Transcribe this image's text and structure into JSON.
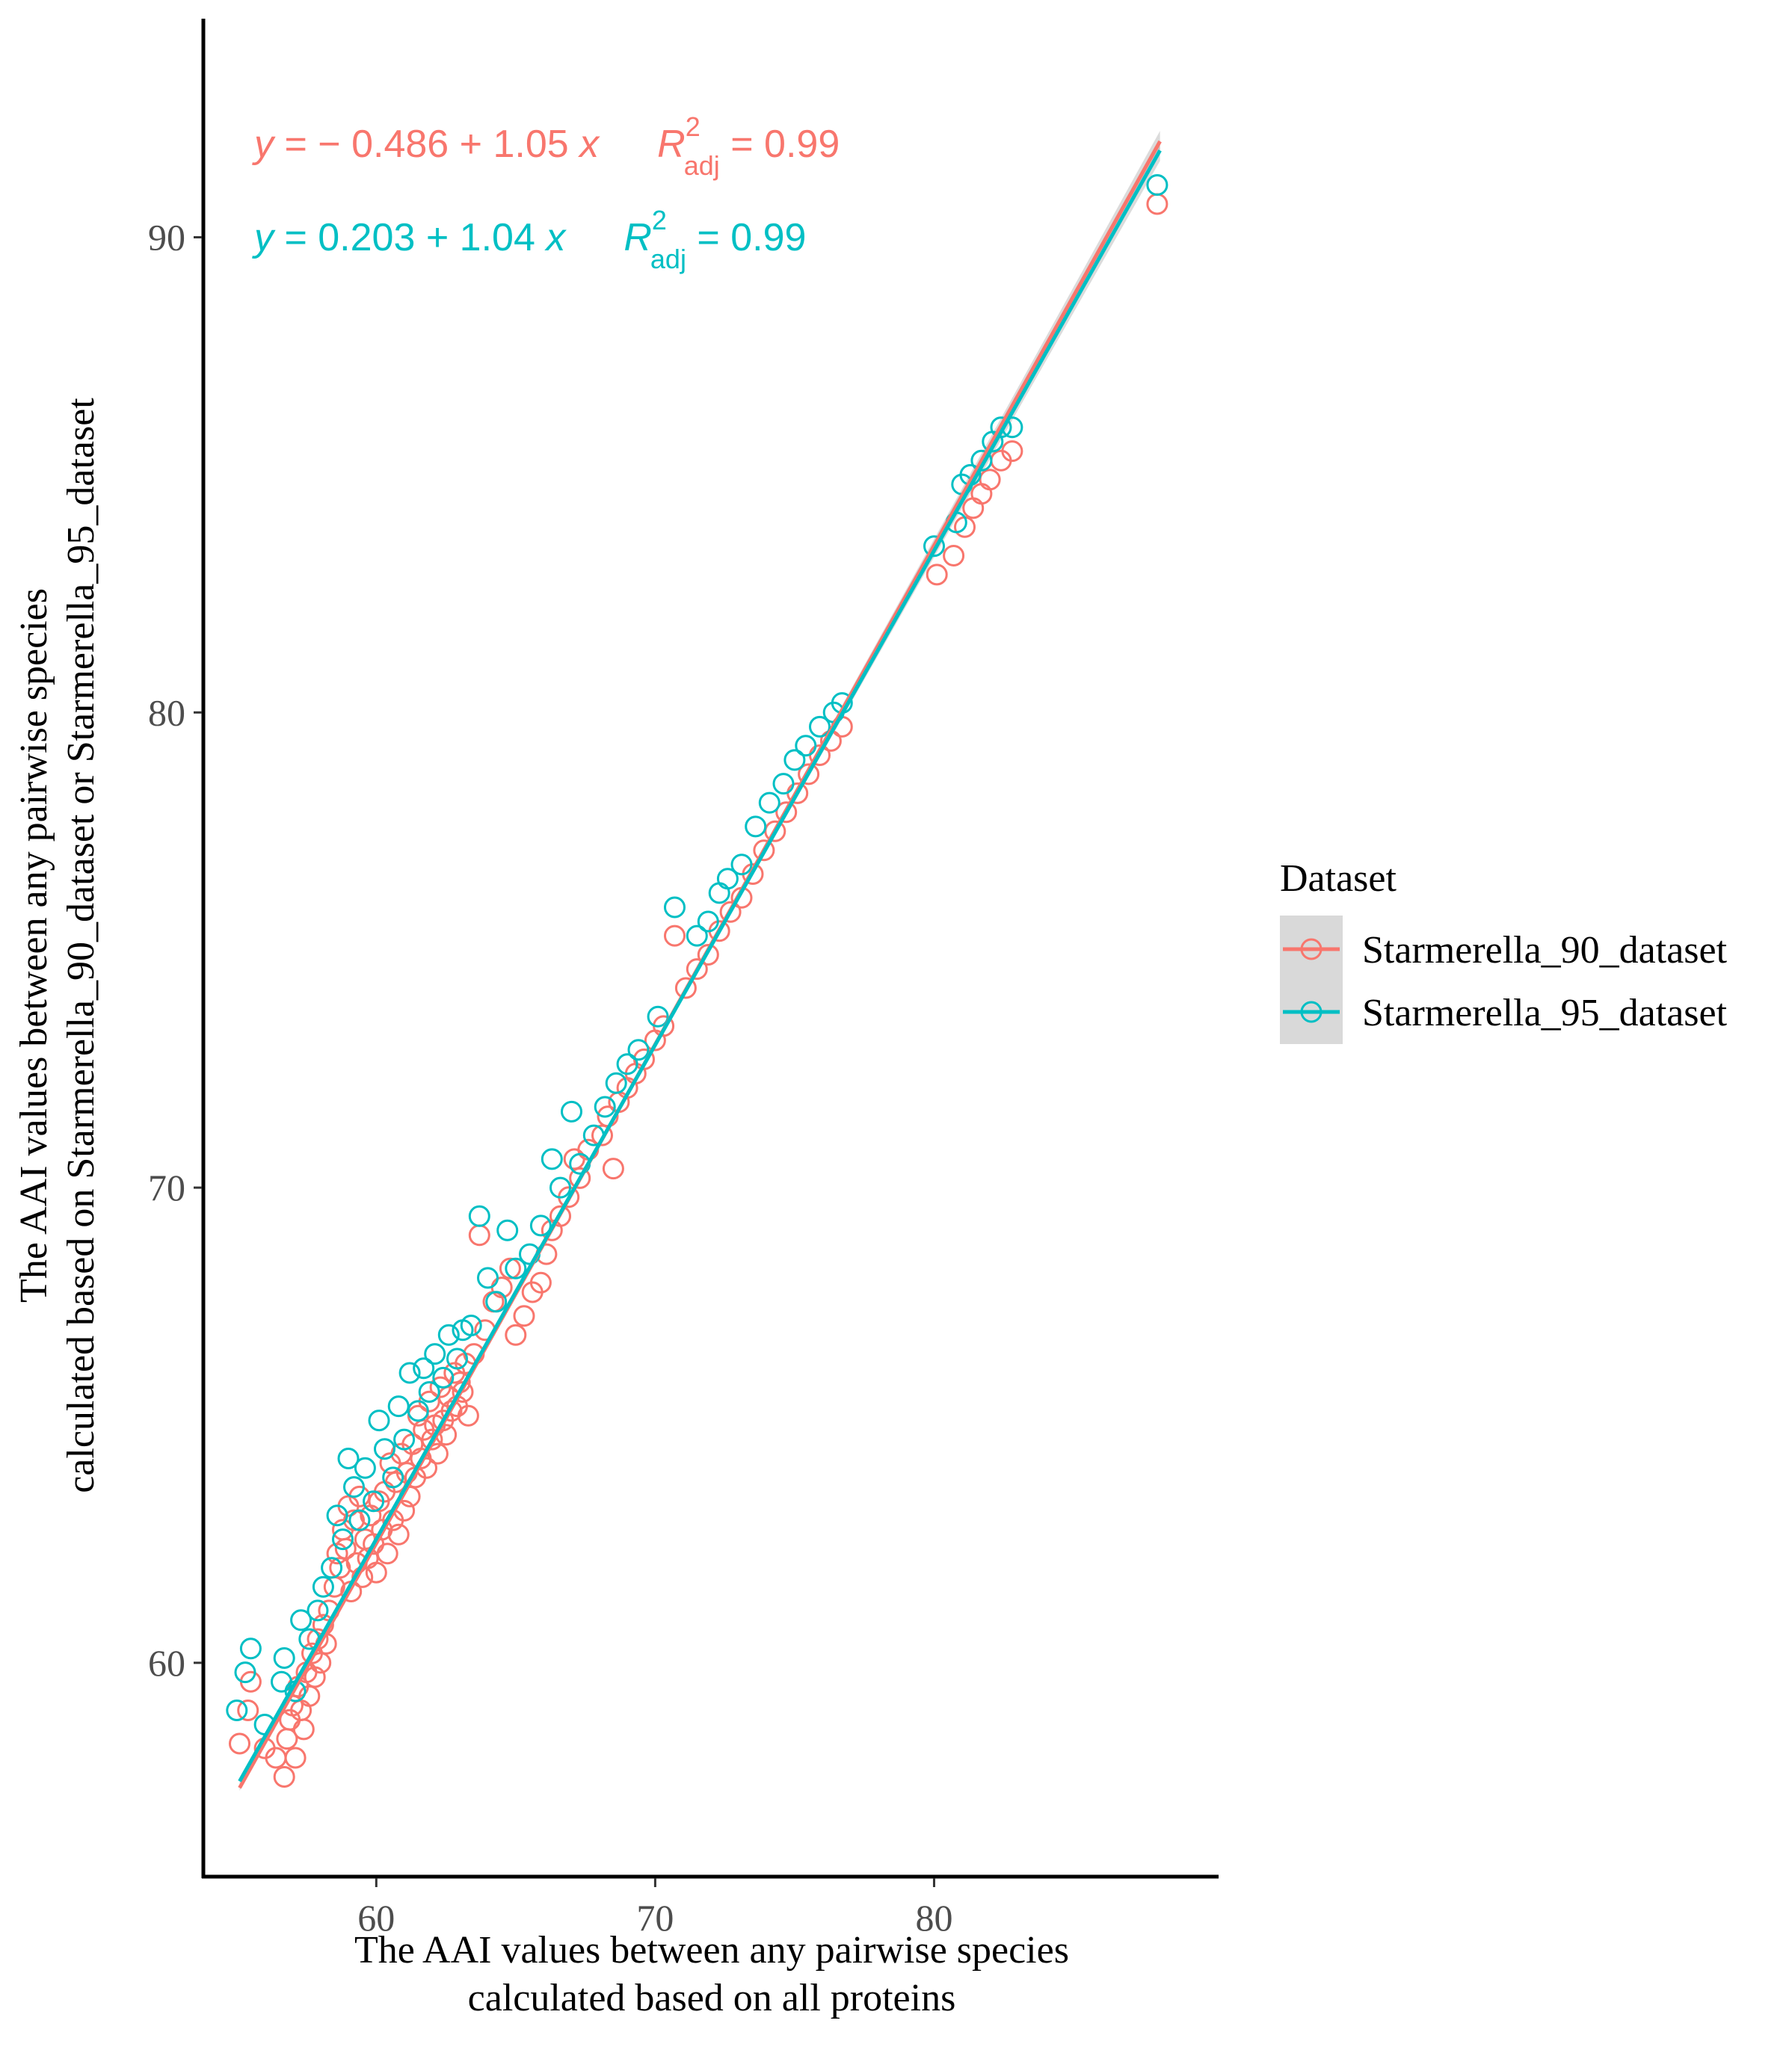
{
  "chart_data": {
    "type": "scatter",
    "xlabel": [
      "The AAI values between any pairwise species",
      "calculated based on all proteins"
    ],
    "ylabel": [
      "The AAI values between any pairwise species",
      "calculated based on Starmerella_90_dataset or Starmerella_95_dataset"
    ],
    "x_ticks": [
      "60",
      "70",
      "80"
    ],
    "y_ticks": [
      "60",
      "70",
      "80",
      "90"
    ],
    "xlim": [
      53.8,
      90.2
    ],
    "ylim": [
      55.5,
      94.6
    ],
    "grid": false,
    "legend": {
      "title": "Dataset",
      "position": "right",
      "entries": [
        "Starmerella_90_dataset",
        "Starmerella_95_dataset"
      ]
    },
    "annotations": [
      {
        "series": "Starmerella_90_dataset",
        "y_sym": "y",
        "eq": " = − 0.486 + 1.05 ",
        "x_sym": "x",
        "r_sym": "R",
        "sup": "2",
        "sub": "adj",
        "r2": " = 0.99"
      },
      {
        "series": "Starmerella_95_dataset",
        "y_sym": "y",
        "eq": " = 0.203 + 1.04 ",
        "x_sym": "x",
        "r_sym": "R",
        "sup": "2",
        "sub": "adj",
        "r2": " = 0.99"
      }
    ],
    "series": [
      {
        "name": "Starmerella_90_dataset",
        "color": "#F8766D",
        "fit": {
          "intercept": -0.486,
          "slope": 1.05,
          "x_range": [
            55.1,
            88.1
          ]
        },
        "points": [
          [
            55.1,
            58.3
          ],
          [
            55.4,
            59.0
          ],
          [
            55.5,
            59.6
          ],
          [
            56.0,
            58.2
          ],
          [
            56.4,
            58.0
          ],
          [
            56.7,
            57.6
          ],
          [
            56.8,
            58.4
          ],
          [
            56.9,
            58.8
          ],
          [
            57.0,
            59.1
          ],
          [
            57.1,
            58.0
          ],
          [
            57.2,
            59.5
          ],
          [
            57.3,
            59.0
          ],
          [
            57.4,
            58.6
          ],
          [
            57.5,
            59.8
          ],
          [
            57.6,
            59.3
          ],
          [
            57.7,
            60.2
          ],
          [
            57.8,
            59.7
          ],
          [
            57.9,
            60.5
          ],
          [
            58.0,
            60.0
          ],
          [
            58.1,
            60.8
          ],
          [
            58.2,
            60.4
          ],
          [
            58.3,
            61.1
          ],
          [
            58.5,
            61.6
          ],
          [
            58.6,
            62.3
          ],
          [
            58.7,
            62.0
          ],
          [
            58.8,
            62.8
          ],
          [
            58.9,
            62.4
          ],
          [
            59.0,
            63.3
          ],
          [
            59.1,
            61.5
          ],
          [
            59.2,
            63.0
          ],
          [
            59.3,
            62.1
          ],
          [
            59.4,
            63.5
          ],
          [
            59.5,
            61.8
          ],
          [
            59.6,
            62.6
          ],
          [
            59.7,
            62.2
          ],
          [
            59.8,
            63.1
          ],
          [
            59.9,
            62.5
          ],
          [
            60.0,
            61.9
          ],
          [
            60.1,
            63.4
          ],
          [
            60.2,
            62.8
          ],
          [
            60.3,
            63.6
          ],
          [
            60.4,
            62.3
          ],
          [
            60.5,
            64.2
          ],
          [
            60.6,
            63.0
          ],
          [
            60.7,
            63.8
          ],
          [
            60.8,
            62.7
          ],
          [
            60.9,
            64.4
          ],
          [
            61.0,
            63.2
          ],
          [
            61.1,
            64.0
          ],
          [
            61.2,
            63.5
          ],
          [
            61.3,
            64.6
          ],
          [
            61.4,
            63.9
          ],
          [
            61.5,
            65.2
          ],
          [
            61.6,
            64.3
          ],
          [
            61.7,
            64.9
          ],
          [
            61.8,
            64.1
          ],
          [
            61.9,
            65.5
          ],
          [
            62.0,
            64.7
          ],
          [
            62.1,
            65.0
          ],
          [
            62.2,
            64.4
          ],
          [
            62.3,
            65.8
          ],
          [
            62.4,
            65.1
          ],
          [
            62.5,
            64.8
          ],
          [
            62.6,
            65.6
          ],
          [
            62.7,
            65.3
          ],
          [
            62.8,
            66.1
          ],
          [
            62.9,
            65.4
          ],
          [
            63.0,
            65.9
          ],
          [
            63.1,
            65.7
          ],
          [
            63.2,
            66.3
          ],
          [
            63.3,
            65.2
          ],
          [
            63.5,
            66.5
          ],
          [
            63.7,
            69.0
          ],
          [
            63.9,
            67.0
          ],
          [
            64.2,
            67.6
          ],
          [
            64.5,
            67.9
          ],
          [
            64.8,
            68.3
          ],
          [
            65.0,
            66.9
          ],
          [
            65.3,
            67.3
          ],
          [
            65.6,
            67.8
          ],
          [
            65.9,
            68.0
          ],
          [
            66.1,
            68.6
          ],
          [
            66.3,
            69.1
          ],
          [
            66.6,
            69.4
          ],
          [
            66.9,
            69.8
          ],
          [
            67.1,
            70.6
          ],
          [
            67.3,
            70.2
          ],
          [
            67.6,
            70.8
          ],
          [
            68.1,
            71.1
          ],
          [
            68.3,
            71.5
          ],
          [
            68.5,
            70.4
          ],
          [
            68.7,
            71.8
          ],
          [
            69.0,
            72.1
          ],
          [
            69.3,
            72.4
          ],
          [
            69.6,
            72.7
          ],
          [
            70.0,
            73.1
          ],
          [
            70.3,
            73.4
          ],
          [
            70.7,
            75.3
          ],
          [
            71.1,
            74.2
          ],
          [
            71.5,
            74.6
          ],
          [
            71.9,
            74.9
          ],
          [
            72.3,
            75.4
          ],
          [
            72.7,
            75.8
          ],
          [
            73.1,
            76.1
          ],
          [
            73.5,
            76.6
          ],
          [
            73.9,
            77.1
          ],
          [
            74.3,
            77.5
          ],
          [
            74.7,
            77.9
          ],
          [
            75.1,
            78.3
          ],
          [
            75.5,
            78.7
          ],
          [
            75.9,
            79.1
          ],
          [
            76.3,
            79.4
          ],
          [
            76.7,
            79.7
          ],
          [
            80.1,
            82.9
          ],
          [
            80.7,
            83.3
          ],
          [
            81.1,
            83.9
          ],
          [
            81.4,
            84.3
          ],
          [
            81.7,
            84.6
          ],
          [
            82.0,
            84.9
          ],
          [
            82.4,
            85.3
          ],
          [
            82.8,
            85.5
          ],
          [
            88.0,
            90.7
          ]
        ]
      },
      {
        "name": "Starmerella_95_dataset",
        "color": "#00BFC4",
        "fit": {
          "intercept": 0.203,
          "slope": 1.04,
          "x_range": [
            55.1,
            88.1
          ]
        },
        "points": [
          [
            55.0,
            59.0
          ],
          [
            55.3,
            59.8
          ],
          [
            55.5,
            60.3
          ],
          [
            56.0,
            58.7
          ],
          [
            56.6,
            59.6
          ],
          [
            56.7,
            60.1
          ],
          [
            57.1,
            59.4
          ],
          [
            57.3,
            60.9
          ],
          [
            57.6,
            60.5
          ],
          [
            57.9,
            61.1
          ],
          [
            58.1,
            61.6
          ],
          [
            58.4,
            62.0
          ],
          [
            58.6,
            63.1
          ],
          [
            58.8,
            62.6
          ],
          [
            59.0,
            64.3
          ],
          [
            59.2,
            63.7
          ],
          [
            59.4,
            63.0
          ],
          [
            59.6,
            64.1
          ],
          [
            59.9,
            63.4
          ],
          [
            60.1,
            65.1
          ],
          [
            60.3,
            64.5
          ],
          [
            60.6,
            63.9
          ],
          [
            60.8,
            65.4
          ],
          [
            61.0,
            64.7
          ],
          [
            61.2,
            66.1
          ],
          [
            61.5,
            65.3
          ],
          [
            61.7,
            66.2
          ],
          [
            61.9,
            65.7
          ],
          [
            62.1,
            66.5
          ],
          [
            62.4,
            66.0
          ],
          [
            62.6,
            66.9
          ],
          [
            62.9,
            66.4
          ],
          [
            63.1,
            67.0
          ],
          [
            63.4,
            67.1
          ],
          [
            63.7,
            69.4
          ],
          [
            64.0,
            68.1
          ],
          [
            64.3,
            67.6
          ],
          [
            64.7,
            69.1
          ],
          [
            65.0,
            68.3
          ],
          [
            65.5,
            68.6
          ],
          [
            65.9,
            69.2
          ],
          [
            66.3,
            70.6
          ],
          [
            66.6,
            70.0
          ],
          [
            67.0,
            71.6
          ],
          [
            67.3,
            70.5
          ],
          [
            67.8,
            71.1
          ],
          [
            68.2,
            71.7
          ],
          [
            68.6,
            72.2
          ],
          [
            69.0,
            72.6
          ],
          [
            69.4,
            72.9
          ],
          [
            70.1,
            73.6
          ],
          [
            70.7,
            75.9
          ],
          [
            71.5,
            75.3
          ],
          [
            71.9,
            75.6
          ],
          [
            72.3,
            76.2
          ],
          [
            72.6,
            76.5
          ],
          [
            73.1,
            76.8
          ],
          [
            73.6,
            77.6
          ],
          [
            74.1,
            78.1
          ],
          [
            74.6,
            78.5
          ],
          [
            75.0,
            79.0
          ],
          [
            75.4,
            79.3
          ],
          [
            75.9,
            79.7
          ],
          [
            76.4,
            80.0
          ],
          [
            76.7,
            80.2
          ],
          [
            80.0,
            83.5
          ],
          [
            80.8,
            84.0
          ],
          [
            81.0,
            84.8
          ],
          [
            81.3,
            85.0
          ],
          [
            81.7,
            85.3
          ],
          [
            82.1,
            85.7
          ],
          [
            82.4,
            86.0
          ],
          [
            82.8,
            86.0
          ],
          [
            88.0,
            91.1
          ]
        ]
      }
    ]
  }
}
